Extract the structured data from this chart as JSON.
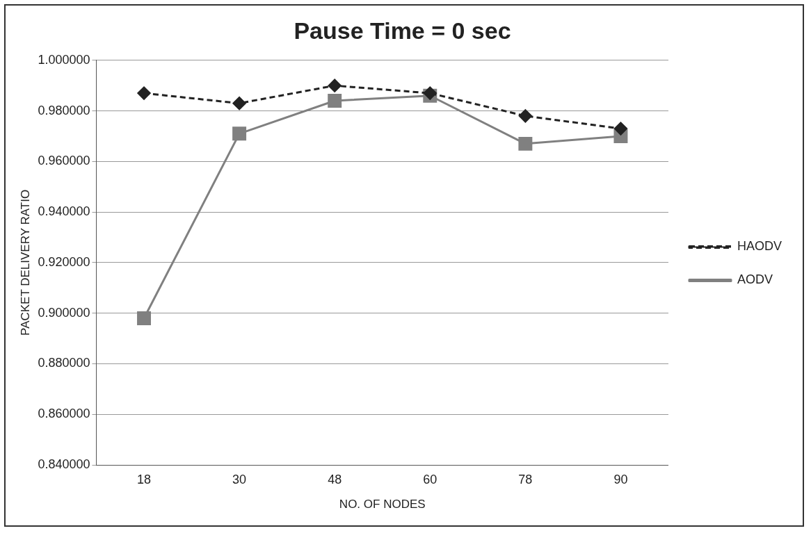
{
  "chart_data": {
    "type": "line",
    "title": "Pause Time = 0 sec",
    "xlabel": "NO. OF NODES",
    "ylabel": "PACKET DELIVERY RATIO",
    "categories": [
      "18",
      "30",
      "48",
      "60",
      "78",
      "90"
    ],
    "series": [
      {
        "name": "HAODV",
        "color": "#222222",
        "values": [
          0.987,
          0.983,
          0.99,
          0.987,
          0.978,
          0.973
        ],
        "marker": "diamond",
        "line_style": "dashed"
      },
      {
        "name": "AODV",
        "color": "#808080",
        "values": [
          0.898,
          0.971,
          0.984,
          0.986,
          0.967,
          0.97
        ],
        "marker": "square",
        "line_style": "solid"
      }
    ],
    "ylim": [
      0.84,
      1.0
    ],
    "yticks": [
      {
        "value": 0.84,
        "label": "0.840000"
      },
      {
        "value": 0.86,
        "label": "0.860000"
      },
      {
        "value": 0.88,
        "label": "0.880000"
      },
      {
        "value": 0.9,
        "label": "0.900000"
      },
      {
        "value": 0.92,
        "label": "0.920000"
      },
      {
        "value": 0.94,
        "label": "0.940000"
      },
      {
        "value": 0.96,
        "label": "0.960000"
      },
      {
        "value": 0.98,
        "label": "0.980000"
      },
      {
        "value": 1.0,
        "label": "1.000000"
      }
    ],
    "grid": "y",
    "legend": "right"
  }
}
